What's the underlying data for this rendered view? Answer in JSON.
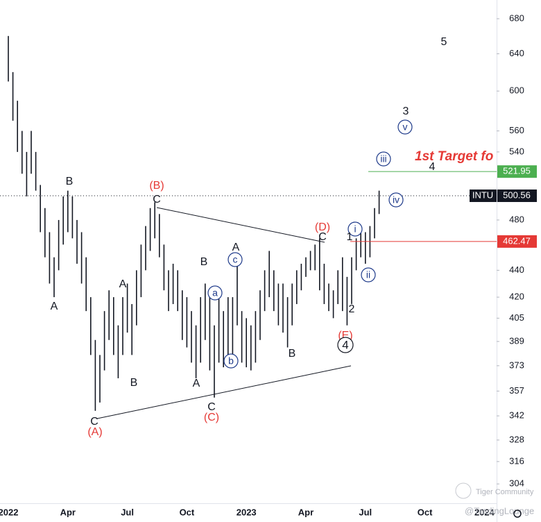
{
  "chart_data": {
    "type": "ohlc",
    "symbol": "INTU",
    "log_scale": true,
    "color": "#131722",
    "categories": [
      "2022",
      null,
      null,
      null,
      null,
      null,
      null,
      null,
      null,
      null,
      null,
      null,
      null,
      "Apr",
      null,
      null,
      null,
      null,
      null,
      null,
      null,
      null,
      null,
      null,
      null,
      null,
      "Jul",
      null,
      null,
      null,
      null,
      null,
      null,
      null,
      null,
      null,
      null,
      null,
      null,
      "Oct",
      null,
      null,
      null,
      null,
      null,
      null,
      null,
      null,
      null,
      null,
      null,
      null,
      "2023",
      null,
      null,
      null,
      null,
      null,
      null,
      null,
      null,
      null,
      null,
      null,
      null,
      "Apr",
      null,
      null,
      null,
      null,
      null,
      null,
      null,
      null,
      null,
      null,
      null,
      null,
      "Jul",
      null,
      null,
      null,
      null,
      null,
      null,
      null,
      null,
      null,
      null,
      null,
      null,
      "Oct",
      null,
      null,
      null,
      null,
      null,
      null,
      null,
      null,
      null,
      null,
      null,
      null,
      "2024"
    ],
    "high": [
      660,
      620,
      590,
      560,
      540,
      560,
      540,
      510,
      490,
      470,
      450,
      480,
      500,
      505,
      500,
      480,
      470,
      450,
      420,
      390,
      380,
      410,
      425,
      420,
      400,
      420,
      430,
      415,
      440,
      460,
      475,
      490,
      495,
      485,
      460,
      440,
      445,
      440,
      425,
      420,
      410,
      400,
      420,
      430,
      420,
      400,
      420,
      410,
      420,
      420,
      445,
      410,
      405,
      400,
      410,
      425,
      440,
      455,
      440,
      430,
      430,
      420,
      430,
      440,
      445,
      450,
      455,
      460,
      465,
      445,
      430,
      425,
      440,
      450,
      435,
      450,
      465,
      470,
      470,
      475,
      490,
      505,
      null,
      null,
      null,
      null,
      null,
      null,
      null,
      null,
      null,
      null,
      null,
      null,
      null,
      null,
      null,
      null,
      null,
      null,
      null,
      null,
      null,
      null,
      null
    ],
    "low": [
      610,
      570,
      540,
      520,
      500,
      520,
      505,
      470,
      450,
      430,
      420,
      440,
      460,
      470,
      465,
      445,
      430,
      410,
      380,
      345,
      350,
      370,
      390,
      380,
      365,
      380,
      395,
      380,
      400,
      420,
      440,
      455,
      465,
      450,
      425,
      410,
      415,
      410,
      390,
      385,
      375,
      365,
      375,
      390,
      370,
      353,
      375,
      372,
      375,
      380,
      400,
      375,
      372,
      370,
      375,
      390,
      410,
      420,
      410,
      400,
      395,
      385,
      400,
      415,
      425,
      435,
      440,
      440,
      425,
      415,
      410,
      405,
      415,
      410,
      400,
      415,
      440,
      450,
      445,
      450,
      465,
      485,
      null,
      null,
      null,
      null,
      null,
      null,
      null,
      null,
      null,
      null,
      null,
      null,
      null,
      null,
      null,
      null,
      null,
      null,
      null,
      null,
      null,
      null,
      null
    ],
    "ylim": [
      294,
      702.4
    ],
    "yticks": [
      680,
      640,
      600,
      560,
      540,
      480,
      440,
      420,
      405,
      389,
      373,
      357,
      342,
      328,
      316,
      304
    ],
    "last_price": 500.56,
    "levels": [
      {
        "value": 521.95,
        "color": "#4caf50"
      },
      {
        "value": 462.47,
        "color": "#e53935"
      }
    ],
    "annotations": [
      "5",
      "3",
      "v",
      "iii",
      "1st Target fo",
      "4",
      "iv",
      "(D)",
      "i",
      "C",
      "1",
      "ii",
      "2",
      "(E)",
      "4",
      "B",
      "A",
      "c",
      "B",
      "a",
      "b",
      "A",
      "C",
      "(C)",
      "(B)",
      "C",
      "A",
      "B",
      "C",
      "(A)",
      "B",
      "A"
    ],
    "watermark": [
      "Tiger Community",
      "@TradingLounge"
    ]
  }
}
